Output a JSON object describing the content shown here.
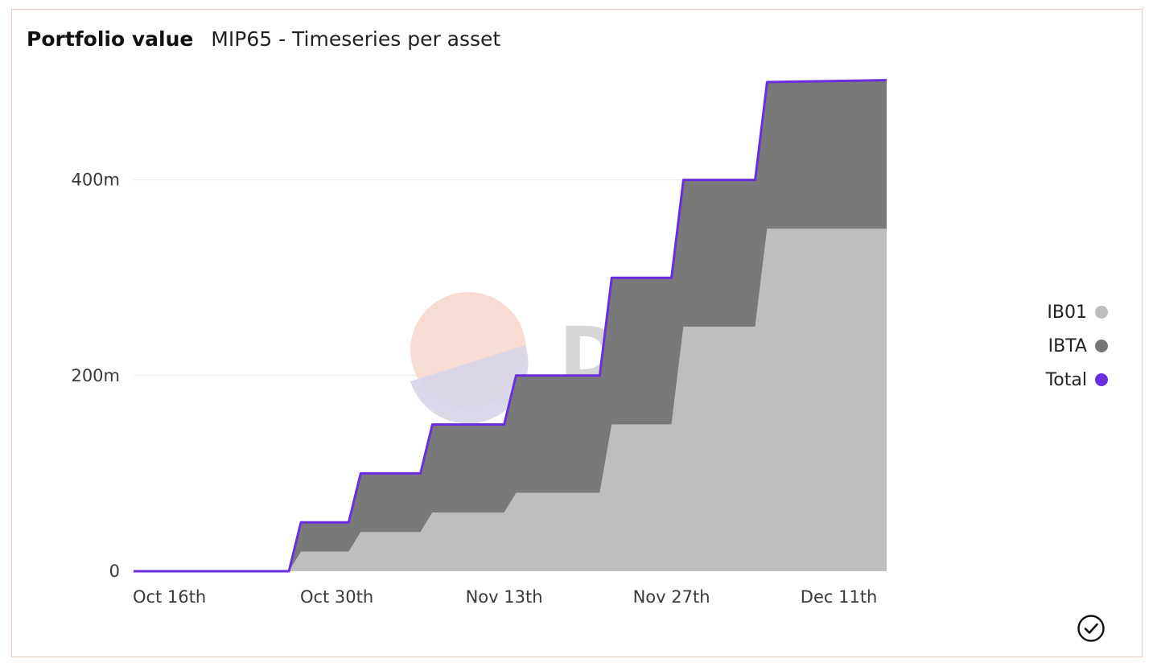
{
  "header": {
    "title": "Portfolio value",
    "subtitle": "MIP65 - Timeseries per asset"
  },
  "watermark": "Dune",
  "icons": {
    "status": "check-circle-icon"
  },
  "colors": {
    "ib01": "#bdbdbd",
    "ibta": "#767676",
    "total": "#6a2ee0",
    "grid": "#ececec",
    "border": "#eac9c0"
  },
  "chart_data": {
    "type": "area",
    "stacked": true,
    "x_axis_type": "date",
    "x": [
      "2022-10-13",
      "2022-10-26",
      "2022-10-27",
      "2022-10-31",
      "2022-11-01",
      "2022-11-06",
      "2022-11-07",
      "2022-11-13",
      "2022-11-14",
      "2022-11-21",
      "2022-11-22",
      "2022-11-27",
      "2022-11-28",
      "2022-12-04",
      "2022-12-05",
      "2022-12-15"
    ],
    "series": [
      {
        "name": "IB01",
        "values": [
          0,
          0,
          20,
          20,
          40,
          40,
          60,
          60,
          80,
          80,
          150,
          150,
          250,
          250,
          350,
          350
        ]
      },
      {
        "name": "IBTA",
        "values": [
          0,
          0,
          30,
          30,
          60,
          60,
          90,
          90,
          120,
          120,
          150,
          150,
          150,
          150,
          150,
          152
        ]
      },
      {
        "name": "Total",
        "values": [
          0,
          0,
          50,
          50,
          100,
          100,
          150,
          150,
          200,
          200,
          300,
          300,
          400,
          400,
          500,
          502
        ]
      }
    ],
    "xticks": [
      "Oct 16th",
      "Oct 30th",
      "Nov 13th",
      "Nov 27th",
      "Dec 11th"
    ],
    "yticks": [
      "0",
      "200m",
      "400m"
    ],
    "ylim": [
      0,
      500
    ],
    "y_unit": "m",
    "grid": true,
    "legend": {
      "position": "right",
      "entries": [
        "IB01",
        "IBTA",
        "Total"
      ]
    }
  }
}
